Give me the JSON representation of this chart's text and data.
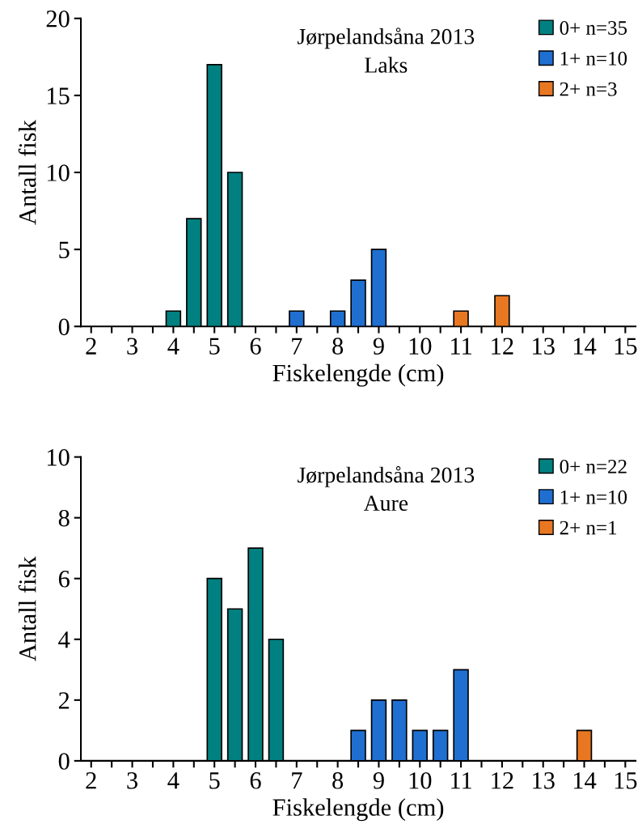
{
  "chart_data": [
    {
      "type": "bar",
      "title": "Jørpelandsåna 2013",
      "subtitle": "Laks",
      "xlabel": "Fiskelengde (cm)",
      "ylabel": "Antall fisk",
      "categories": [
        "2",
        null,
        "3",
        null,
        "4",
        null,
        "5",
        null,
        "6",
        null,
        "7",
        null,
        "8",
        null,
        "9",
        null,
        "10",
        null,
        "11",
        null,
        "12",
        null,
        "13",
        null,
        "14",
        null,
        "15"
      ],
      "series": [
        {
          "name": "0+ n=35",
          "color": "#008080",
          "values": [
            null,
            null,
            null,
            null,
            1,
            7,
            17,
            10,
            null,
            null,
            null,
            null,
            null,
            null,
            null,
            null,
            null,
            null,
            null,
            null,
            null,
            null,
            null,
            null,
            null,
            null,
            null
          ]
        },
        {
          "name": "1+ n=10",
          "color": "#1f6fd1",
          "values": [
            null,
            null,
            null,
            null,
            null,
            null,
            null,
            null,
            null,
            null,
            1,
            null,
            1,
            3,
            5,
            null,
            null,
            null,
            null,
            null,
            null,
            null,
            null,
            null,
            null,
            null,
            null
          ]
        },
        {
          "name": "2+ n=3",
          "color": "#e87722",
          "values": [
            null,
            null,
            null,
            null,
            null,
            null,
            null,
            null,
            null,
            null,
            null,
            null,
            null,
            null,
            null,
            null,
            null,
            null,
            1,
            null,
            2,
            null,
            null,
            null,
            null,
            null,
            null
          ]
        }
      ],
      "ylim": [
        0,
        20
      ],
      "yticks": [
        0,
        5,
        10,
        15,
        20
      ],
      "grid": false,
      "legend": "top right"
    },
    {
      "type": "bar",
      "title": "Jørpelandsåna 2013",
      "subtitle": "Aure",
      "xlabel": "Fiskelengde (cm)",
      "ylabel": "Antall fisk",
      "categories": [
        "2",
        null,
        "3",
        null,
        "4",
        null,
        "5",
        null,
        "6",
        null,
        "7",
        null,
        "8",
        null,
        "9",
        null,
        "10",
        null,
        "11",
        null,
        "12",
        null,
        "13",
        null,
        "14",
        null,
        "15"
      ],
      "series": [
        {
          "name": "0+ n=22",
          "color": "#008080",
          "values": [
            null,
            null,
            null,
            null,
            null,
            null,
            6,
            5,
            7,
            4,
            null,
            null,
            null,
            null,
            null,
            null,
            null,
            null,
            null,
            null,
            null,
            null,
            null,
            null,
            null,
            null,
            null
          ]
        },
        {
          "name": "1+ n=10",
          "color": "#1f6fd1",
          "values": [
            null,
            null,
            null,
            null,
            null,
            null,
            null,
            null,
            null,
            null,
            null,
            null,
            null,
            1,
            2,
            2,
            1,
            1,
            3,
            null,
            null,
            null,
            null,
            null,
            null,
            null,
            null
          ]
        },
        {
          "name": "2+ n=1",
          "color": "#e87722",
          "values": [
            null,
            null,
            null,
            null,
            null,
            null,
            null,
            null,
            null,
            null,
            null,
            null,
            null,
            null,
            null,
            null,
            null,
            null,
            null,
            null,
            null,
            null,
            null,
            null,
            1,
            null,
            null
          ]
        }
      ],
      "ylim": [
        0,
        10
      ],
      "yticks": [
        0,
        2,
        4,
        6,
        8,
        10
      ],
      "grid": false,
      "legend": "top right"
    }
  ]
}
